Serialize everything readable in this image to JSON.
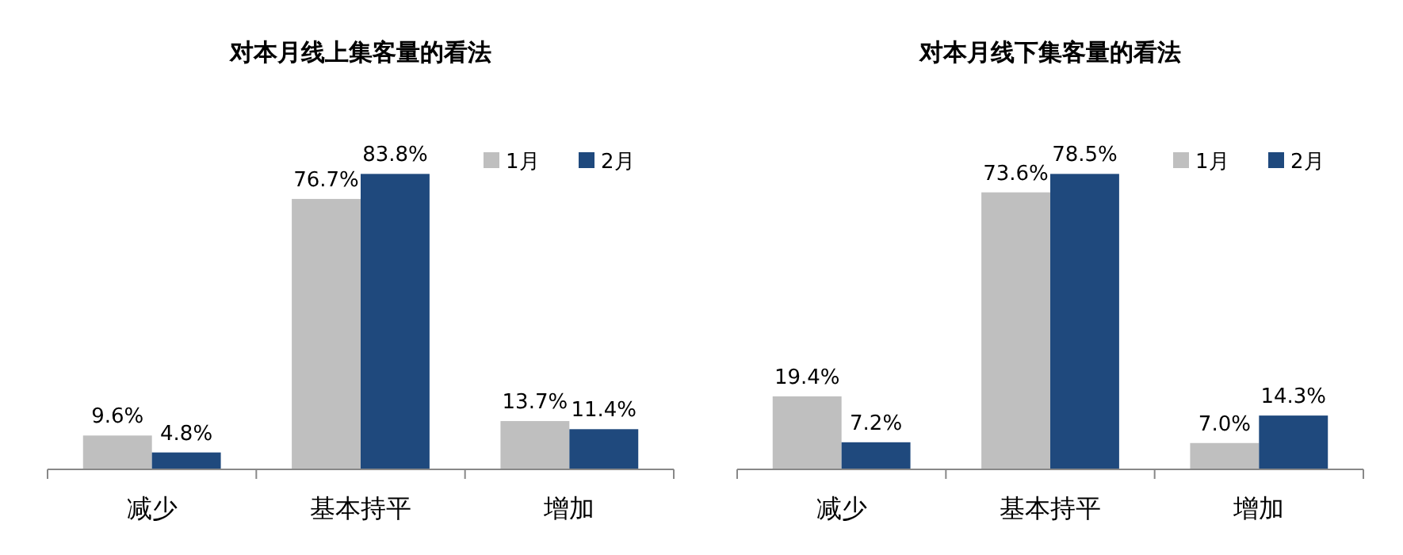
{
  "chart_data": [
    {
      "type": "bar",
      "title": "对本月线上集客量的看法",
      "categories": [
        "减少",
        "基本持平",
        "增加"
      ],
      "legend": "top right",
      "series": [
        {
          "name": "1月",
          "color": "#bfbfbf",
          "values": [
            9.6,
            76.7,
            13.7
          ],
          "value_labels": [
            "9.6%",
            "76.7%",
            "13.7%"
          ]
        },
        {
          "name": "2月",
          "color": "#1f497d",
          "values": [
            4.8,
            83.8,
            11.4
          ],
          "value_labels": [
            "4.8%",
            "83.8%",
            "11.4%"
          ]
        }
      ]
    },
    {
      "type": "bar",
      "title": "对本月线下集客量的看法",
      "categories": [
        "减少",
        "基本持平",
        "增加"
      ],
      "legend": "top right",
      "series": [
        {
          "name": "1月",
          "color": "#bfbfbf",
          "values": [
            19.4,
            73.6,
            7.0
          ],
          "value_labels": [
            "19.4%",
            "73.6%",
            "7.0%"
          ]
        },
        {
          "name": "2月",
          "color": "#1f497d",
          "values": [
            7.2,
            78.5,
            14.3
          ],
          "value_labels": [
            "7.2%",
            "78.5%",
            "14.3%"
          ]
        }
      ]
    }
  ]
}
